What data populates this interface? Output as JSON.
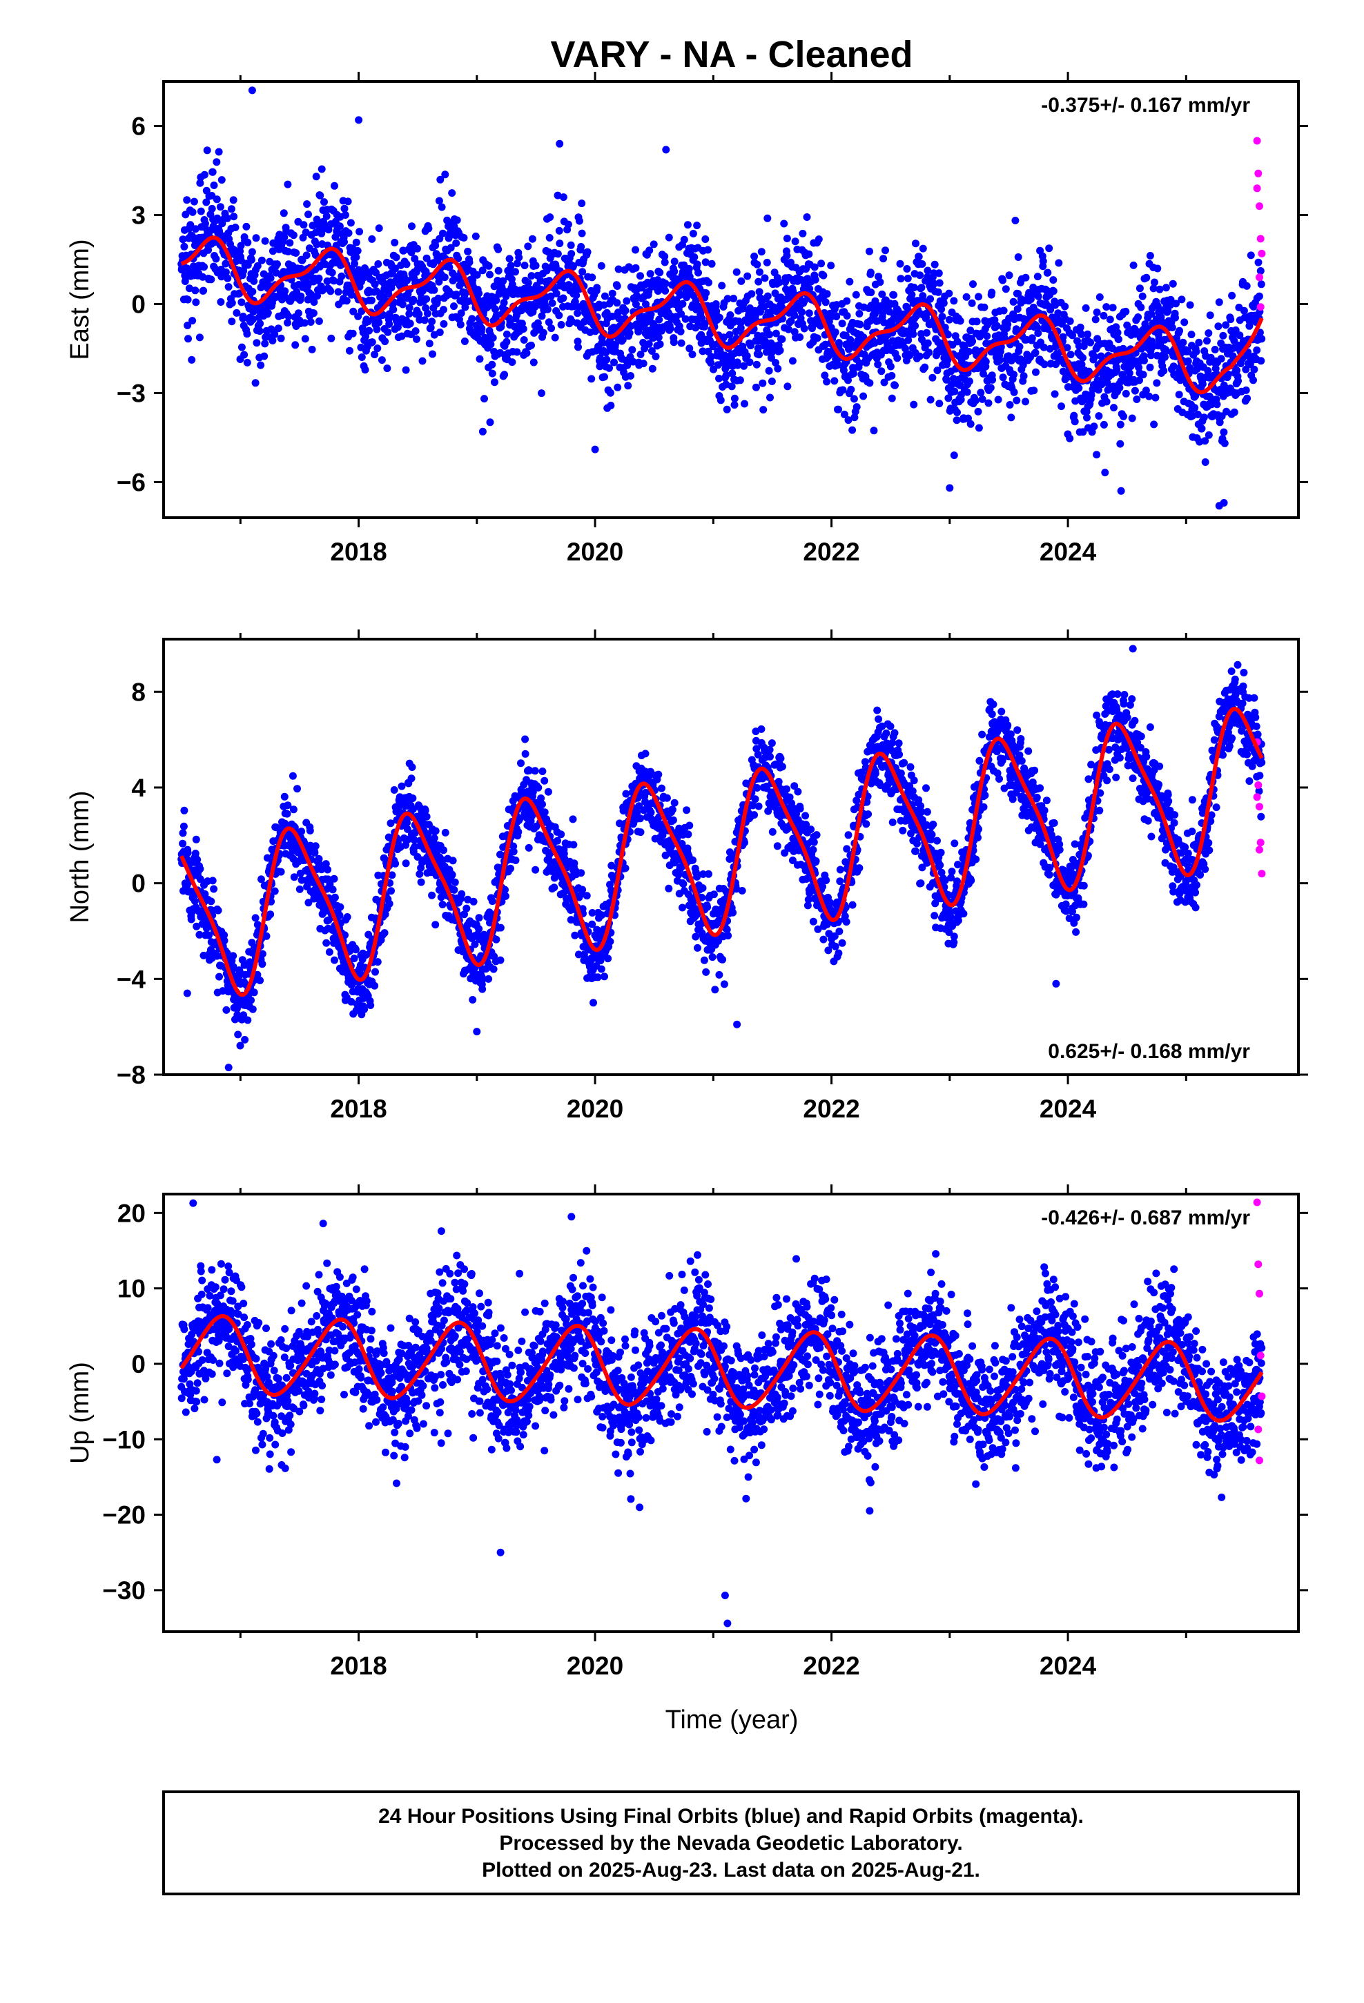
{
  "title": "VARY  - NA - Cleaned",
  "xlabel": "Time (year)",
  "footer": [
    "24 Hour Positions Using Final Orbits (blue) and Rapid Orbits (magenta).",
    "Processed by the Nevada Geodetic Laboratory.",
    "Plotted on 2025-Aug-23. Last data on 2025-Aug-21."
  ],
  "colors": {
    "final": "#0000ff",
    "rapid": "#ff00ff",
    "fit": "#ff0000"
  },
  "chart_data": [
    {
      "type": "scatter",
      "component": "east",
      "ylabel": "East (mm)",
      "rate_text": "-0.375+/- 0.167 mm/yr",
      "rate_position": "top-right",
      "xlim": [
        2016.35,
        2025.95
      ],
      "ylim": [
        -7.2,
        7.5
      ],
      "xticks": [
        2018,
        2020,
        2022,
        2024
      ],
      "yticks": [
        -6,
        -3,
        0,
        3,
        6
      ],
      "yticklabels": [
        "−6",
        "−3",
        "0",
        "3",
        "6"
      ],
      "time_range": [
        2016.5,
        2025.64
      ],
      "trend": {
        "intercept_2016_5": 1.3,
        "rate_mm_per_yr": -0.375
      },
      "seasonal": {
        "annual_amp": 0.85,
        "annual_phase": 0.45,
        "semiannual_amp": 0.35,
        "semiannual_phase": 0.2
      },
      "noise_sigma": 1.05,
      "end_jump": {
        "start": 2025.38,
        "end": 2025.64,
        "from": -1.9,
        "to": -0.8
      },
      "outliers": [
        [
          2017.1,
          7.2
        ],
        [
          2018.0,
          6.2
        ],
        [
          2019.7,
          5.4
        ],
        [
          2020.6,
          5.2
        ],
        [
          2019.05,
          -4.3
        ],
        [
          2020.0,
          -4.9
        ],
        [
          2023.0,
          -6.2
        ],
        [
          2024.45,
          -6.3
        ],
        [
          2025.32,
          -6.7
        ],
        [
          2025.28,
          -6.8
        ]
      ],
      "rapid": {
        "x": [
          2025.6,
          2025.61,
          2025.62,
          2025.63,
          2025.64,
          2025.62,
          2025.63,
          2025.6
        ],
        "y": [
          5.5,
          4.4,
          3.3,
          2.2,
          1.7,
          0.9,
          -0.1,
          3.9
        ]
      },
      "fit_color": "#ff0000"
    },
    {
      "type": "scatter",
      "component": "north",
      "ylabel": "North (mm)",
      "rate_text": "0.625+/- 0.168 mm/yr",
      "rate_position": "bottom-right",
      "xlim": [
        2016.35,
        2025.95
      ],
      "ylim": [
        -8.0,
        10.2
      ],
      "xticks": [
        2018,
        2020,
        2022,
        2024
      ],
      "yticks": [
        -8,
        -4,
        0,
        4,
        8
      ],
      "yticklabels": [
        "−8",
        "−4",
        "0",
        "4",
        "8"
      ],
      "time_range": [
        2016.5,
        2025.64
      ],
      "trend": {
        "intercept_2016_5": -1.5,
        "rate_mm_per_yr": 0.625
      },
      "seasonal": {
        "annual_amp": 3.1,
        "annual_phase": 0.22,
        "semiannual_amp": 0.7,
        "semiannual_phase": 0.2
      },
      "noise_sigma": 0.85,
      "outliers": [
        [
          2016.55,
          -4.6
        ],
        [
          2016.9,
          -7.7
        ],
        [
          2024.55,
          9.8
        ],
        [
          2023.9,
          -4.2
        ],
        [
          2021.2,
          -5.9
        ],
        [
          2018.1,
          -5.1
        ],
        [
          2019.0,
          -6.2
        ]
      ],
      "rapid": {
        "x": [
          2025.6,
          2025.61,
          2025.62,
          2025.63,
          2025.64,
          2025.6,
          2025.62
        ],
        "y": [
          5.9,
          4.1,
          3.2,
          1.7,
          0.4,
          3.6,
          1.4
        ]
      },
      "fit_color": "#ff0000"
    },
    {
      "type": "scatter",
      "component": "up",
      "ylabel": "Up (mm)",
      "rate_text": "-0.426+/- 0.687 mm/yr",
      "rate_position": "top-right",
      "xlim": [
        2016.35,
        2025.95
      ],
      "ylim": [
        -35.5,
        22.5
      ],
      "xticks": [
        2018,
        2020,
        2022,
        2024
      ],
      "yticks": [
        -30,
        -20,
        -10,
        0,
        10,
        20
      ],
      "yticklabels": [
        "−30",
        "−20",
        "−10",
        "0",
        "10",
        "20"
      ],
      "time_range": [
        2016.5,
        2025.64
      ],
      "trend": {
        "intercept_2016_5": 1.2,
        "rate_mm_per_yr": -0.426
      },
      "seasonal": {
        "annual_amp": 5.0,
        "annual_phase": 0.57,
        "semiannual_amp": 0.6,
        "semiannual_phase": 0.3
      },
      "noise_sigma": 4.0,
      "outliers": [
        [
          2016.6,
          21.3
        ],
        [
          2019.8,
          19.5
        ],
        [
          2019.2,
          -25.0
        ],
        [
          2021.1,
          -30.7
        ],
        [
          2021.12,
          -34.4
        ],
        [
          2025.3,
          -17.7
        ],
        [
          2016.8,
          -12.7
        ],
        [
          2017.7,
          18.6
        ],
        [
          2018.7,
          17.6
        ]
      ],
      "rapid": {
        "x": [
          2025.6,
          2025.61,
          2025.62,
          2025.63,
          2025.64,
          2025.61,
          2025.62
        ],
        "y": [
          21.4,
          13.2,
          9.3,
          1.1,
          -4.3,
          -8.7,
          -12.8
        ]
      },
      "fit_color": "#ff0000"
    }
  ]
}
